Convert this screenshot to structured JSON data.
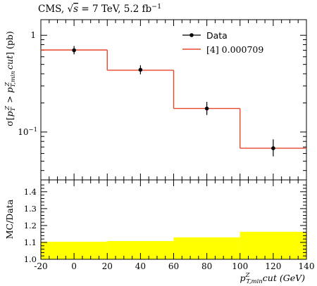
{
  "header": {
    "label_prefix": "CMS, ",
    "label_sqrt_s": "s",
    "label_energy": " = 7 TeV, 5.2 fb",
    "label_inv_exp": "−1"
  },
  "legend": {
    "data_label": "Data",
    "mc_label": "[4] 0.000709"
  },
  "axes": {
    "top_ylabel": "σ[p_T^Z > p_{T,min}^Z cut] (pb)",
    "bottom_ylabel": "MC/Data",
    "xlabel_main": "p",
    "xlabel_sup": "Z",
    "xlabel_sub": "T,min",
    "xlabel_tail": "cut (GeV)",
    "x_ticks": [
      "-20",
      "0",
      "20",
      "40",
      "60",
      "80",
      "100",
      "120",
      "140"
    ],
    "top_y_ticks": [
      "1",
      "10⁻¹"
    ],
    "ratio_y_ticks": [
      "1.0",
      "1.1",
      "1.2",
      "1.3",
      "1.4"
    ]
  },
  "colors": {
    "mc_line": "#e8452b",
    "band": "#ffff00",
    "data": "#000000"
  },
  "chart_data": [
    {
      "type": "line",
      "title": "",
      "xlabel": "p_T,min^Z cut (GeV)",
      "ylabel": "σ[p_T^Z > p_T,min^Z cut] (pb)",
      "yscale": "log",
      "xlim": [
        -20,
        140
      ],
      "ylim": [
        0.032,
        1.45
      ],
      "series": [
        {
          "name": "Data",
          "x": [
            0,
            40,
            80,
            120
          ],
          "y": [
            0.7,
            0.44,
            0.175,
            0.068
          ],
          "yerr_low": [
            0.065,
            0.045,
            0.025,
            0.012
          ],
          "yerr_high": [
            0.075,
            0.05,
            0.03,
            0.016
          ]
        },
        {
          "name": "[4] 0.000709",
          "bin_edges": [
            -20,
            20,
            60,
            100,
            140
          ],
          "values": [
            0.705,
            0.435,
            0.175,
            0.068
          ]
        }
      ]
    },
    {
      "type": "area",
      "ylabel": "MC/Data",
      "xlim": [
        -20,
        140
      ],
      "ylim": [
        1.0,
        1.47
      ],
      "bin_edges": [
        -20,
        20,
        60,
        100,
        140
      ],
      "band_low": [
        1.0,
        1.0,
        1.0,
        1.0
      ],
      "band_high": [
        1.104,
        1.108,
        1.13,
        1.163
      ]
    }
  ]
}
